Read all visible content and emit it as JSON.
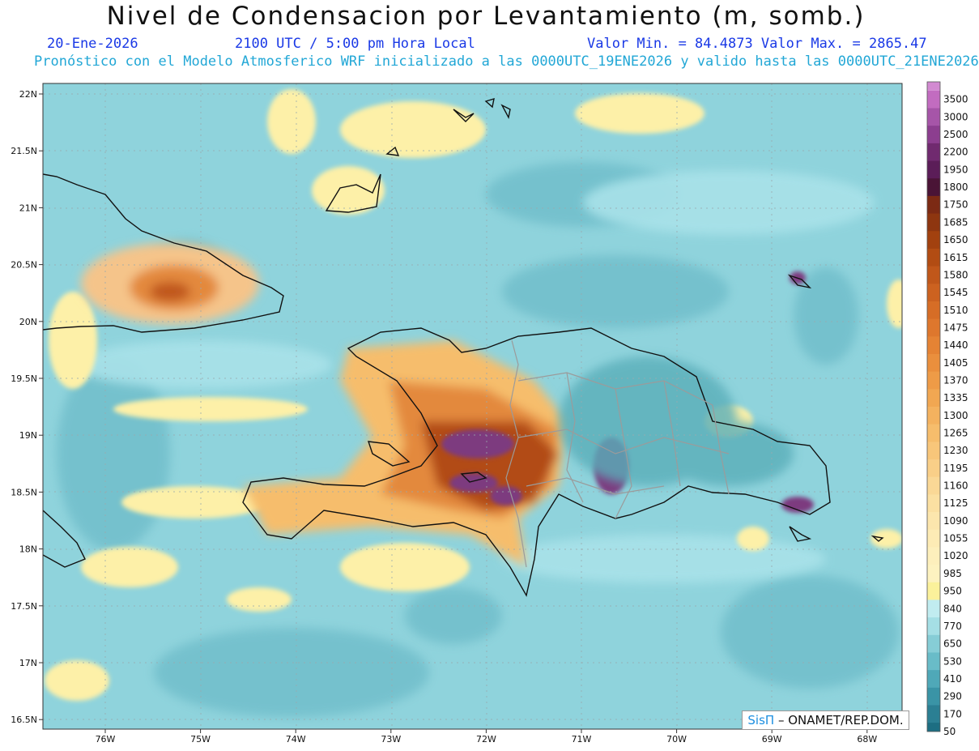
{
  "header": {
    "title": "Nivel de Condensacion por Levantamiento (m, somb.)",
    "date": "20-Ene-2026",
    "time": "2100 UTC / 5:00 pm Hora Local",
    "minmax": "Valor Min. = 84.4873  Valor Max. = 2865.47",
    "model_info": "Pronóstico con el Modelo Atmosferico WRF inicializado a las 0000UTC_19ENE2026 y valido hasta las  0000UTC_21ENE2026"
  },
  "axes": {
    "lat_labels": [
      "22N",
      "21.5N",
      "21N",
      "20.5N",
      "20N",
      "19.5N",
      "19N",
      "18.5N",
      "18N",
      "17.5N",
      "17N",
      "16.5N"
    ],
    "lon_labels": [
      "76W",
      "75W",
      "74W",
      "73W",
      "72W",
      "71W",
      "70W",
      "69W",
      "68W"
    ]
  },
  "colorbar": {
    "labels": [
      "3500",
      "3000",
      "2500",
      "2200",
      "1950",
      "1800",
      "1750",
      "1685",
      "1650",
      "1615",
      "1580",
      "1545",
      "1510",
      "1475",
      "1440",
      "1405",
      "1370",
      "1335",
      "1300",
      "1265",
      "1230",
      "1195",
      "1160",
      "1125",
      "1090",
      "1055",
      "1020",
      "985",
      "950",
      "840",
      "770",
      "650",
      "530",
      "410",
      "290",
      "170",
      "50"
    ],
    "colors": [
      "#c26cc0",
      "#a655a8",
      "#8c3e8f",
      "#702a6f",
      "#5b1d58",
      "#4a1436",
      "#7c2a14",
      "#8e3610",
      "#a2410f",
      "#b24c13",
      "#c0571a",
      "#cc6220",
      "#d66d26",
      "#de772d",
      "#e58334",
      "#ea8f3d",
      "#ee9b47",
      "#f1a752",
      "#f4b25f",
      "#f6bd6c",
      "#f8c67a",
      "#f9cf88",
      "#fad896",
      "#fbe0a2",
      "#fce6ad",
      "#fdebb5",
      "#fdefbc",
      "#fdf2c0",
      "#fbf19b",
      "#c1ecf0",
      "#a5dfe5",
      "#86cdd6",
      "#69bcc8",
      "#4fa8b8",
      "#3a94a6",
      "#2b7f93"
    ],
    "low_color": "#1d6e82",
    "high_color": "#d28ad1"
  },
  "colors": {
    "ocean": "#8fd3dc",
    "ocean_deep": "#75c3ce",
    "sand": "#fdf0a8",
    "orange": "#f4a661",
    "brown": "#9a4a18",
    "purple": "#7d3a7f"
  },
  "credit": {
    "logo": "SisΠ",
    "org": "– ONAMET/REP.DOM."
  }
}
